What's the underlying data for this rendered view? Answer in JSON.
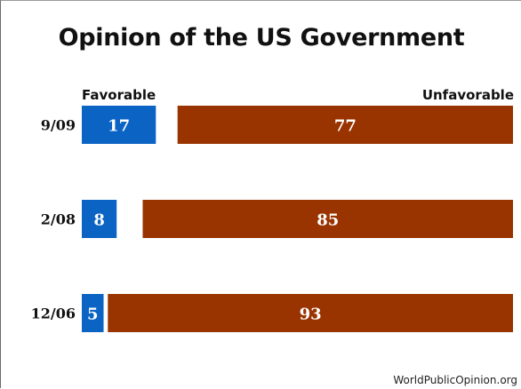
{
  "chart_data": {
    "type": "bar",
    "orientation": "horizontal-diverging",
    "title": "Opinion of the US Government",
    "categories": [
      "9/09",
      "2/08",
      "12/06"
    ],
    "series": [
      {
        "name": "Favorable",
        "values": [
          17,
          8,
          5
        ],
        "color": "#0b63c4"
      },
      {
        "name": "Unfavorable",
        "values": [
          77,
          85,
          93
        ],
        "color": "#993300"
      }
    ],
    "legend_placement": "top",
    "grid": false
  },
  "source": "WorldPublicOpinion.org"
}
